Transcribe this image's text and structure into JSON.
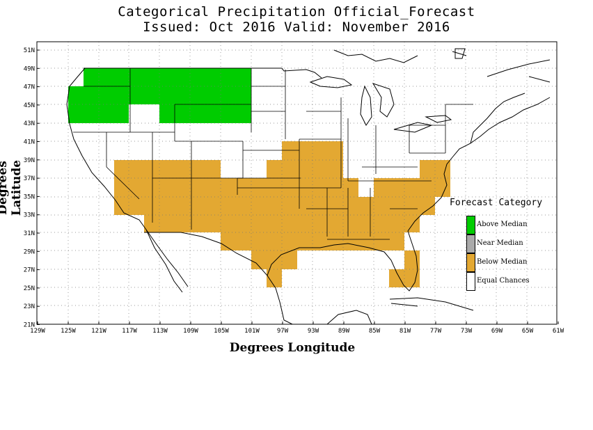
{
  "title": {
    "line1": "Categorical Precipitation Official_Forecast",
    "line2": "Issued: Oct 2016 Valid: November 2016"
  },
  "axes": {
    "xlabel": "Degrees Longitude",
    "ylabel": "Degrees Latitude",
    "x_ticks": [
      "129W",
      "125W",
      "121W",
      "117W",
      "113W",
      "109W",
      "105W",
      "101W",
      "97W",
      "93W",
      "89W",
      "85W",
      "81W",
      "77W",
      "73W",
      "69W",
      "65W",
      "61W"
    ],
    "y_ticks": [
      "51N",
      "49N",
      "47N",
      "45N",
      "43N",
      "41N",
      "39N",
      "37N",
      "35N",
      "33N",
      "31N",
      "29N",
      "27N",
      "25N",
      "23N",
      "21N"
    ]
  },
  "legend": {
    "title": "Forecast Category",
    "items": [
      {
        "label": "Above Median",
        "color": "#00cc00"
      },
      {
        "label": "Near Median",
        "color": "#aaaaaa"
      },
      {
        "label": "Below Median",
        "color": "#e3a832"
      },
      {
        "label": "Equal Chances",
        "color": "#ffffff"
      }
    ]
  },
  "colors": {
    "above_median": "#00cc00",
    "near_median": "#aaaaaa",
    "below_median": "#e3a832",
    "equal_chances": "#ffffff"
  },
  "forecast_regions": [
    {
      "category": "Above Median",
      "area": "Pacific Northwest and Northern Rockies (WA, OR, ID, MT, northern WY)"
    },
    {
      "category": "Below Median",
      "area": "Southwest, Southern Plains, Lower Mississippi Valley, Gulf Coast, Southeast and Mid-Atlantic"
    },
    {
      "category": "Equal Chances",
      "area": "Remainder of the contiguous US"
    }
  ]
}
